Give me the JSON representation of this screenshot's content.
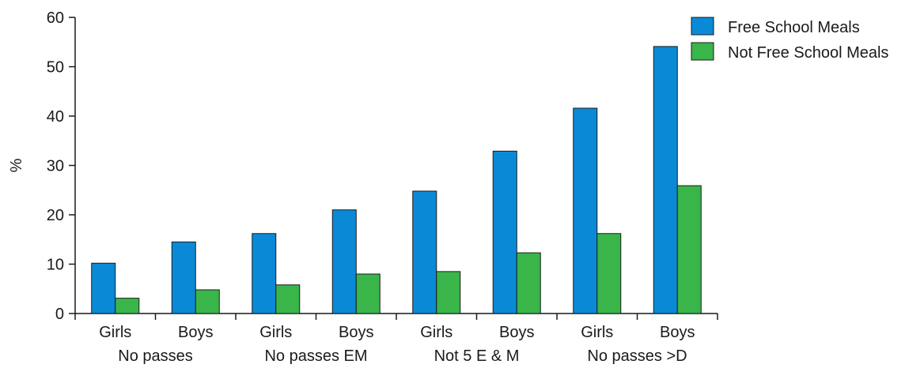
{
  "chart_data": {
    "type": "bar",
    "ylabel": "%",
    "ylim": [
      0,
      60
    ],
    "yticks": [
      0,
      10,
      20,
      30,
      40,
      50,
      60
    ],
    "categories": [
      "Girls",
      "Boys",
      "Girls",
      "Boys",
      "Girls",
      "Boys",
      "Girls",
      "Boys"
    ],
    "groups": [
      "No passes",
      "No passes EM",
      "Not 5 E & M",
      "No passes >D"
    ],
    "series": [
      {
        "name": "Free School Meals",
        "color": "#0a8ad6",
        "values": [
          10.2,
          14.5,
          16.2,
          21.0,
          24.8,
          32.9,
          41.6,
          54.1
        ]
      },
      {
        "name": "Not Free School Meals",
        "color": "#3ab54a",
        "values": [
          3.1,
          4.8,
          5.8,
          8.0,
          8.5,
          12.3,
          16.2,
          25.9
        ]
      }
    ],
    "legend_position": "top-right",
    "grid": false
  }
}
